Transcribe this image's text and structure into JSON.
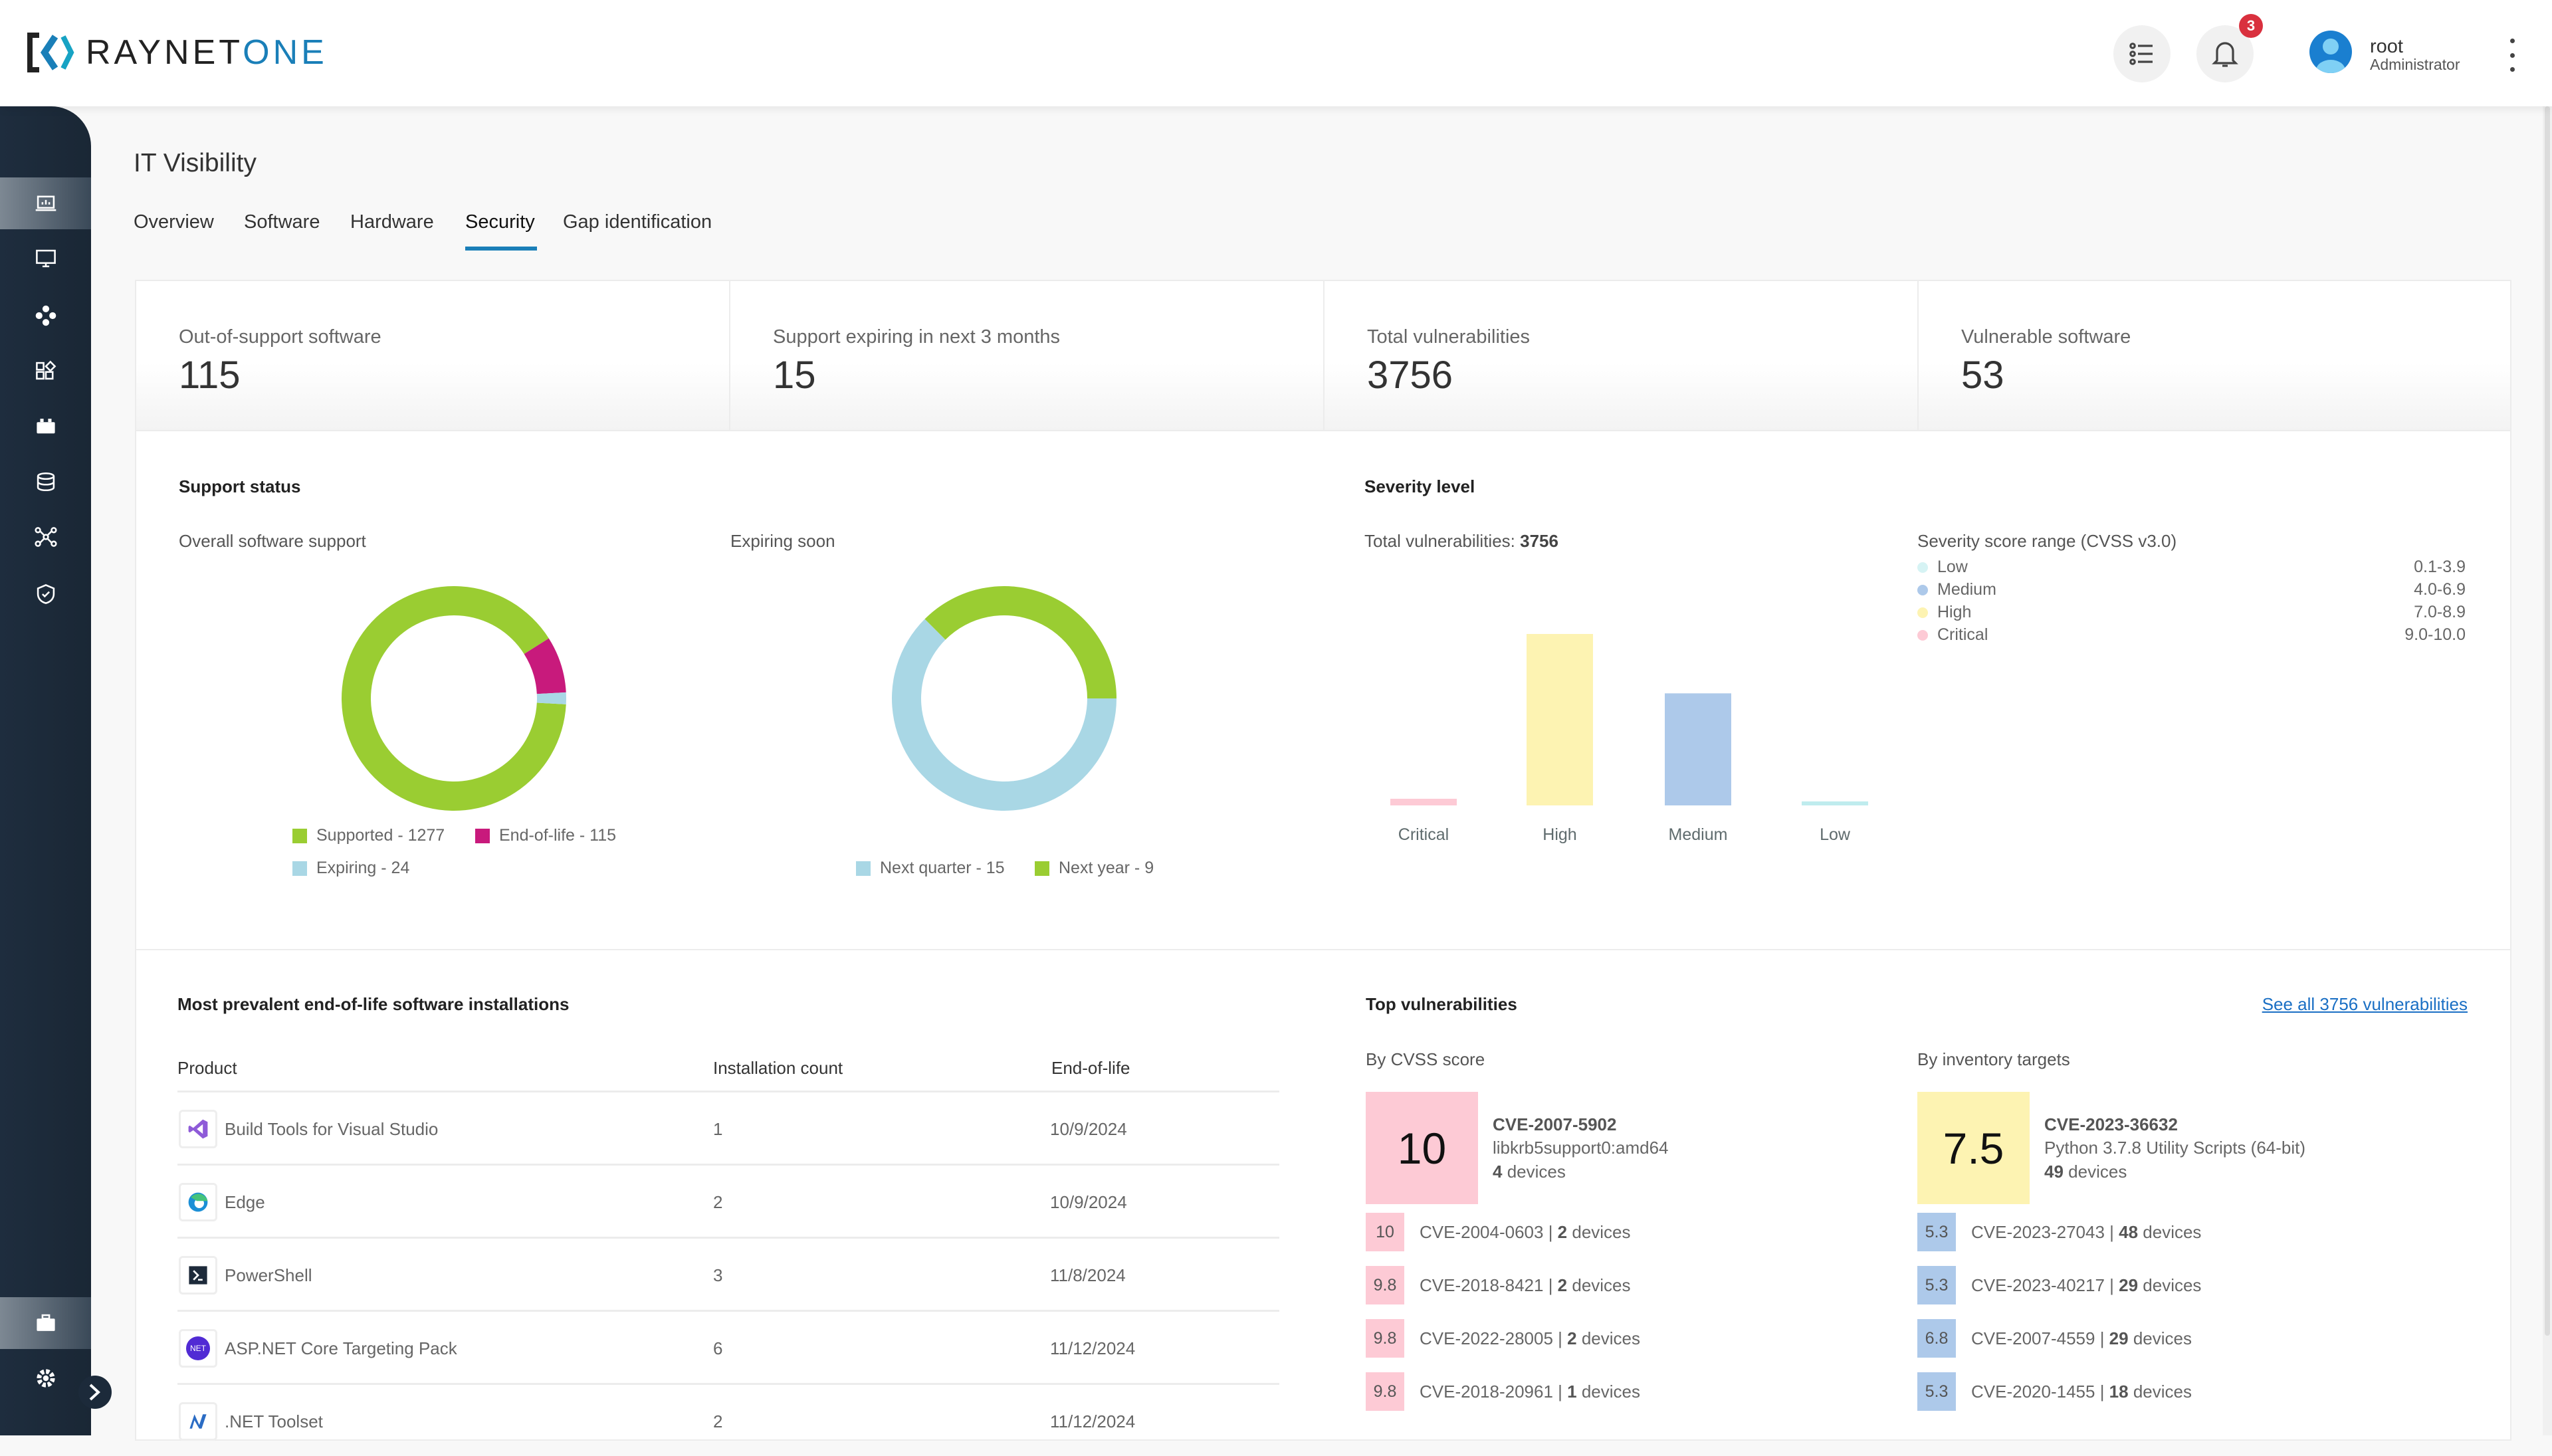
{
  "header": {
    "logo_a": "RAYNET",
    "logo_b": "ONE",
    "notifications": "3",
    "user": {
      "name": "root",
      "role": "Administrator"
    }
  },
  "sidebar": {
    "items": [
      "dashboard",
      "devices",
      "network",
      "apps",
      "packages",
      "database",
      "integrations",
      "security"
    ],
    "bottom": [
      "briefcase",
      "settings"
    ]
  },
  "page": {
    "title": "IT Visibility",
    "tabs": [
      {
        "label": "Overview"
      },
      {
        "label": "Software"
      },
      {
        "label": "Hardware"
      },
      {
        "label": "Security",
        "active": true
      },
      {
        "label": "Gap identification"
      }
    ]
  },
  "kpis": [
    {
      "label": "Out-of-support software",
      "value": "115"
    },
    {
      "label": "Support expiring in next 3 months",
      "value": "15"
    },
    {
      "label": "Total vulnerabilities",
      "value": "3756"
    },
    {
      "label": "Vulnerable software",
      "value": "53"
    }
  ],
  "support": {
    "title": "Support status",
    "overall_label": "Overall software support",
    "expiring_label": "Expiring soon"
  },
  "severity": {
    "title": "Severity level",
    "total_label": "Total vulnerabilities:",
    "total_value": "3756",
    "range_title": "Severity score range (CVSS v3.0)",
    "ranges": [
      {
        "name": "Low",
        "range": "0.1-3.9",
        "color": "#d6f3f4"
      },
      {
        "name": "Medium",
        "range": "4.0-6.9",
        "color": "#adc9ea"
      },
      {
        "name": "High",
        "range": "7.0-8.9",
        "color": "#fdf3b2"
      },
      {
        "name": "Critical",
        "range": "9.0-10.0",
        "color": "#fdcad5"
      }
    ]
  },
  "chart_data": [
    {
      "type": "pie",
      "variant": "donut",
      "categories": [
        "Supported",
        "End-of-life",
        "Expiring"
      ],
      "values": [
        1277,
        115,
        24
      ],
      "colors": [
        "#9acd32",
        "#c81a7c",
        "#a9d7e5"
      ],
      "legend": [
        "Supported - 1277",
        "End-of-life - 115",
        "Expiring - 24"
      ]
    },
    {
      "type": "pie",
      "variant": "donut",
      "categories": [
        "Next quarter",
        "Next year"
      ],
      "values": [
        15,
        9
      ],
      "colors": [
        "#a9d7e5",
        "#9acd32"
      ],
      "legend": [
        "Next quarter - 15",
        "Next year - 9"
      ]
    },
    {
      "type": "bar",
      "categories": [
        "Critical",
        "High",
        "Medium",
        "Low"
      ],
      "values": [
        85,
        2189,
        1431,
        51
      ],
      "colors": [
        "#fdcad5",
        "#fdf3b2",
        "#adc9ea",
        "#bfecee"
      ],
      "grid": false
    }
  ],
  "eol": {
    "title": "Most prevalent end-of-life software installations",
    "headers": [
      "Product",
      "Installation count",
      "End-of-life"
    ],
    "rows": [
      {
        "product": "Build Tools for Visual Studio",
        "count": "1",
        "eol": "10/9/2024",
        "icon": "visual-studio-icon"
      },
      {
        "product": "Edge",
        "count": "2",
        "eol": "10/9/2024",
        "icon": "edge-icon"
      },
      {
        "product": "PowerShell",
        "count": "3",
        "eol": "11/8/2024",
        "icon": "powershell-icon"
      },
      {
        "product": "ASP.NET Core Targeting Pack",
        "count": "6",
        "eol": "11/12/2024",
        "icon": "dotnet-icon"
      },
      {
        "product": ".NET Toolset",
        "count": "2",
        "eol": "11/12/2024",
        "icon": "dotnet-toolset-icon"
      }
    ]
  },
  "topvuln": {
    "title": "Top vulnerabilities",
    "see_all": "See all 3756 vulnerabilities",
    "by_cvss": "By CVSS score",
    "by_targets": "By inventory targets",
    "cvss_top": {
      "score": "10",
      "cve": "CVE-2007-5902",
      "product": "libkrb5support0:amd64",
      "devices_n": "4",
      "devices_w": "devices",
      "color": "#fdcad5"
    },
    "cvss_list": [
      {
        "score": "10",
        "cve": "CVE-2004-0603",
        "n": "2"
      },
      {
        "score": "9.8",
        "cve": "CVE-2018-8421",
        "n": "2"
      },
      {
        "score": "9.8",
        "cve": "CVE-2022-28005",
        "n": "2"
      },
      {
        "score": "9.8",
        "cve": "CVE-2018-20961",
        "n": "1"
      }
    ],
    "target_top": {
      "score": "7.5",
      "cve": "CVE-2023-36632",
      "product": "Python 3.7.8 Utility Scripts (64-bit)",
      "devices_n": "49",
      "devices_w": "devices",
      "color": "#fdf3b2"
    },
    "target_list": [
      {
        "score": "5.3",
        "cve": "CVE-2023-27043",
        "n": "48"
      },
      {
        "score": "5.3",
        "cve": "CVE-2023-40217",
        "n": "29"
      },
      {
        "score": "6.8",
        "cve": "CVE-2007-4559",
        "n": "29"
      },
      {
        "score": "5.3",
        "cve": "CVE-2020-1455",
        "n": "18"
      }
    ],
    "sep": " | ",
    "devices_word": " devices"
  }
}
